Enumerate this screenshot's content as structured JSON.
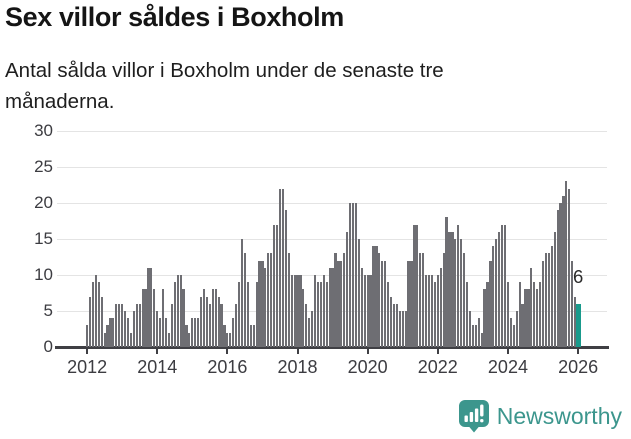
{
  "header": {
    "title": "Sex villor såldes i Boxholm",
    "subtitle": "Antal sålda villor i Boxholm under de senaste tre månaderna."
  },
  "chart_data": {
    "type": "bar",
    "title": "Sex villor såldes i Boxholm",
    "subtitle": "Antal sålda villor i Boxholm under de senaste tre månaderna.",
    "start_year": 2012,
    "frequency": "monthly",
    "values": [
      3,
      7,
      9,
      10,
      9,
      7,
      2,
      3,
      4,
      4,
      6,
      6,
      6,
      5,
      4,
      2,
      5,
      6,
      6,
      8,
      8,
      11,
      11,
      8,
      5,
      4,
      8,
      4,
      2,
      6,
      9,
      10,
      10,
      8,
      3,
      2,
      4,
      4,
      4,
      7,
      8,
      7,
      6,
      8,
      8,
      7,
      6,
      3,
      2,
      2,
      4,
      6,
      9,
      15,
      13,
      9,
      3,
      3,
      9,
      12,
      12,
      11,
      13,
      13,
      17,
      17,
      22,
      22,
      19,
      13,
      10,
      10,
      10,
      10,
      8,
      6,
      4,
      5,
      10,
      9,
      9,
      10,
      9,
      11,
      11,
      13,
      12,
      12,
      13,
      16,
      20,
      20,
      20,
      15,
      11,
      10,
      10,
      10,
      14,
      14,
      13,
      12,
      12,
      9,
      7,
      6,
      6,
      5,
      5,
      5,
      12,
      12,
      17,
      17,
      13,
      13,
      10,
      10,
      10,
      9,
      10,
      11,
      13,
      18,
      16,
      16,
      15,
      17,
      15,
      13,
      9,
      5,
      3,
      3,
      4,
      2,
      8,
      9,
      12,
      14,
      15,
      16,
      17,
      17,
      9,
      4,
      3,
      5,
      9,
      6,
      8,
      8,
      11,
      9,
      8,
      9,
      12,
      13,
      13,
      14,
      16,
      19,
      20,
      21,
      23,
      22,
      12,
      7,
      6
    ],
    "highlight_index": 168,
    "highlight_value_label": "6",
    "y_ticks": [
      0,
      5,
      10,
      15,
      20,
      25,
      30
    ],
    "x_ticks": [
      "2012",
      "2014",
      "2016",
      "2018",
      "2020",
      "2022",
      "2024",
      "2026"
    ],
    "months_per_x_tick": 24,
    "ylim": [
      0,
      30
    ],
    "grid": "horizontal",
    "legend": "none",
    "colors": {
      "bar": "#6e6e73",
      "highlight": "#199a8c",
      "grid": "#e4e4e4",
      "axis": "#3f3f44"
    }
  },
  "footer": {
    "brand": "Newsworthy",
    "brand_color": "#3c968d",
    "logo_icon": "speech-bubble-bar-chart"
  }
}
